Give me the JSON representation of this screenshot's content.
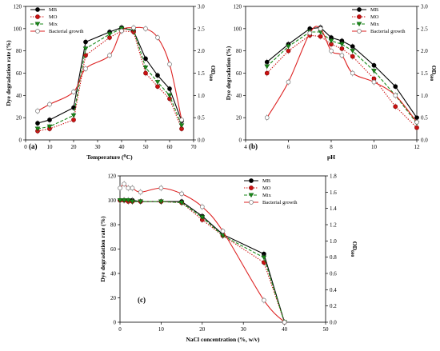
{
  "figure": {
    "colors": {
      "MB": "#000000",
      "MO": "#cc1111",
      "Mix": "#1a8a1a",
      "Bacterial growth": "#dd2222"
    }
  },
  "chart_data": [
    {
      "type": "line",
      "panel_label": "(a)",
      "xlabel": "Temperature (⁰C)",
      "ylabel": "Dye degradation rate (%)",
      "y2label": "OD600",
      "xlim": [
        0,
        70
      ],
      "xticks": [
        "0",
        "10",
        "20",
        "30",
        "40",
        "50",
        "60",
        "70"
      ],
      "ylim": [
        0,
        120
      ],
      "yticks": [
        "0",
        "20",
        "40",
        "60",
        "80",
        "100",
        "120"
      ],
      "y2lim": [
        0,
        3.0
      ],
      "y2ticks": [
        "0.0",
        "0.5",
        "1.0",
        "1.5",
        "2.0",
        "2.5",
        "3.0"
      ],
      "legend_position": "top-left",
      "series": [
        {
          "name": "MB",
          "axis": "left",
          "x": [
            5,
            10,
            20,
            25,
            35,
            40,
            45,
            50,
            55,
            60,
            65
          ],
          "y": [
            15,
            18,
            29,
            88,
            97,
            101,
            98,
            73,
            58,
            46,
            17
          ]
        },
        {
          "name": "MO",
          "axis": "left",
          "x": [
            5,
            10,
            20,
            25,
            35,
            40,
            45,
            50,
            55,
            60,
            65
          ],
          "y": [
            8,
            10,
            18,
            76,
            92,
            98,
            97,
            60,
            48,
            37,
            10
          ]
        },
        {
          "name": "Mix",
          "axis": "left",
          "x": [
            5,
            10,
            20,
            25,
            35,
            40,
            45,
            50,
            55,
            60,
            65
          ],
          "y": [
            10,
            12,
            22,
            82,
            95,
            100,
            99,
            65,
            52,
            40,
            13
          ]
        },
        {
          "name": "Bacterial growth",
          "axis": "right",
          "x": [
            5,
            10,
            20,
            25,
            35,
            40,
            45,
            50,
            55,
            60,
            65
          ],
          "y": [
            0.65,
            0.8,
            1.08,
            1.6,
            1.9,
            2.45,
            2.52,
            2.5,
            2.3,
            1.7,
            0.45
          ]
        }
      ]
    },
    {
      "type": "line",
      "panel_label": "(b)",
      "xlabel": "pH",
      "ylabel": "Dye degradation (%)",
      "y2label": "OD600",
      "xlim": [
        4,
        12
      ],
      "xticks": [
        "4",
        "6",
        "8",
        "10",
        "12"
      ],
      "ylim": [
        0,
        120
      ],
      "yticks": [
        "0",
        "20",
        "40",
        "60",
        "80",
        "100",
        "120"
      ],
      "y2lim": [
        0,
        3.0
      ],
      "y2ticks": [
        "0.0",
        "0.5",
        "1.0",
        "1.5",
        "2.0",
        "2.5",
        "3.0"
      ],
      "legend_position": "top-right",
      "series": [
        {
          "name": "MB",
          "axis": "left",
          "x": [
            5,
            6,
            7,
            7.5,
            8,
            8.5,
            9,
            10,
            11,
            12
          ],
          "y": [
            70,
            86,
            100,
            101,
            92,
            89,
            84,
            67,
            48,
            20
          ]
        },
        {
          "name": "MO",
          "axis": "left",
          "x": [
            5,
            6,
            7,
            7.5,
            8,
            8.5,
            9,
            10,
            11,
            12
          ],
          "y": [
            60,
            80,
            94,
            93,
            86,
            82,
            75,
            55,
            30,
            11
          ]
        },
        {
          "name": "Mix",
          "axis": "left",
          "x": [
            5,
            6,
            7,
            7.5,
            8,
            8.5,
            9,
            10,
            11,
            12
          ],
          "y": [
            66,
            84,
            97,
            97,
            89,
            86,
            80,
            62,
            40,
            15
          ]
        },
        {
          "name": "Bacterial growth",
          "axis": "right",
          "x": [
            5,
            6,
            7,
            7.5,
            8,
            8.5,
            9,
            10,
            11,
            12
          ],
          "y": [
            0.5,
            1.3,
            2.4,
            2.5,
            2.0,
            1.9,
            1.5,
            1.3,
            1.0,
            0.4
          ]
        }
      ]
    },
    {
      "type": "line",
      "panel_label": "(c)",
      "xlabel": "NaCl concentration (%, w/v)",
      "ylabel": "Dye degradation rate (%)",
      "y2label": "OD600",
      "xlim": [
        0,
        50
      ],
      "xticks": [
        "0",
        "10",
        "20",
        "30",
        "40",
        "50"
      ],
      "ylim": [
        0,
        120
      ],
      "yticks": [
        "0",
        "20",
        "40",
        "60",
        "80",
        "100",
        "120"
      ],
      "y2lim": [
        0,
        1.8
      ],
      "y2ticks": [
        "0.0",
        "0.2",
        "0.4",
        "0.6",
        "0.8",
        "1.0",
        "1.2",
        "1.4",
        "1.6",
        "1.8"
      ],
      "legend_position": "top-right",
      "series": [
        {
          "name": "MB",
          "axis": "left",
          "x": [
            0,
            1,
            2,
            3,
            5,
            10,
            15,
            20,
            25,
            35,
            40
          ],
          "y": [
            100,
            100,
            100,
            100,
            99,
            99,
            99,
            87,
            72,
            56,
            0
          ]
        },
        {
          "name": "MO",
          "axis": "left",
          "x": [
            0,
            1,
            2,
            3,
            5,
            10,
            15,
            20,
            25,
            35,
            40
          ],
          "y": [
            100,
            100,
            99,
            99,
            99,
            99,
            98,
            84,
            71,
            49,
            0
          ]
        },
        {
          "name": "Mix",
          "axis": "left",
          "x": [
            0,
            1,
            2,
            3,
            5,
            10,
            15,
            20,
            25,
            35,
            40
          ],
          "y": [
            100,
            100,
            100,
            99,
            99,
            99,
            98,
            86,
            71,
            53,
            0
          ]
        },
        {
          "name": "Bacterial growth",
          "axis": "right",
          "x": [
            0,
            1,
            2,
            3,
            5,
            10,
            15,
            20,
            25,
            35,
            40
          ],
          "y": [
            1.65,
            1.7,
            1.65,
            1.65,
            1.6,
            1.65,
            1.58,
            1.42,
            1.12,
            0.27,
            0.0
          ]
        }
      ]
    }
  ]
}
